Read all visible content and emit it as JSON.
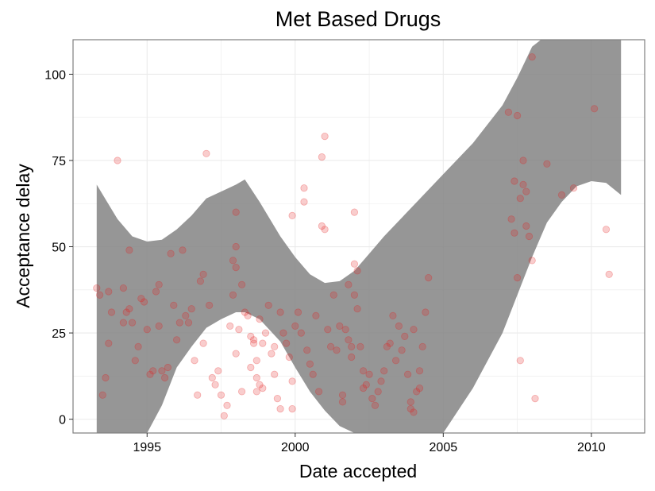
{
  "chart_data": {
    "type": "scatter",
    "title": "Met Based Drugs",
    "xlabel": "Date accepted",
    "ylabel": "Acceptance delay",
    "xlim": [
      1992.5,
      2011.8
    ],
    "ylim": [
      -4,
      110
    ],
    "x_ticks": [
      1995,
      2000,
      2005,
      2010
    ],
    "x_tick_labels": [
      "1995",
      "2000",
      "2005",
      "2010"
    ],
    "y_ticks": [
      0,
      25,
      50,
      75,
      100
    ],
    "y_tick_labels": [
      "0",
      "25",
      "50",
      "75",
      "100"
    ],
    "grid": true,
    "legend": "none",
    "colors": {
      "points": "#e31a1c",
      "band": "#7f7f7f",
      "grid": "#ebebeb",
      "frame": "#7f7f7f"
    },
    "confidence_band": {
      "x": [
        1993.3,
        1994.0,
        1994.5,
        1995.0,
        1995.5,
        1996.0,
        1996.5,
        1997.0,
        1997.5,
        1998.0,
        1998.3,
        1998.8,
        1999.5,
        2000.0,
        2000.5,
        2001.0,
        2001.5,
        2002.0,
        2002.5,
        2003.0,
        2004.0,
        2005.0,
        2006.0,
        2007.0,
        2007.5,
        2008.0,
        2008.3,
        2008.5,
        2009.0,
        2009.5,
        2010.0,
        2010.5,
        2011.0
      ],
      "upper": [
        68,
        58,
        53,
        51.5,
        52,
        55,
        59,
        64,
        66,
        68,
        69.5,
        63,
        53,
        47,
        42,
        39.5,
        40,
        43,
        48,
        53,
        62,
        71,
        80,
        91,
        99,
        108,
        110,
        110,
        110,
        110,
        110,
        110,
        110
      ],
      "lower": [
        -4,
        -4,
        -4,
        -4,
        4,
        15,
        21,
        26.5,
        29,
        31,
        31,
        29,
        22.5,
        15,
        8,
        2.5,
        -2,
        -4,
        -4,
        -4,
        -4,
        -4,
        9,
        25,
        36,
        47,
        53,
        57,
        63,
        67.5,
        69,
        68.5,
        65
      ]
    },
    "points": [
      [
        1993.3,
        38
      ],
      [
        1993.4,
        36
      ],
      [
        1993.5,
        7
      ],
      [
        1993.6,
        12
      ],
      [
        1993.7,
        22
      ],
      [
        1993.8,
        31
      ],
      [
        1993.7,
        37
      ],
      [
        1994.0,
        75
      ],
      [
        1994.2,
        38
      ],
      [
        1994.2,
        28
      ],
      [
        1994.3,
        31
      ],
      [
        1994.4,
        49
      ],
      [
        1994.5,
        28
      ],
      [
        1994.6,
        17
      ],
      [
        1994.7,
        21
      ],
      [
        1994.8,
        35
      ],
      [
        1994.4,
        32
      ],
      [
        1994.9,
        34
      ],
      [
        1995.0,
        26
      ],
      [
        1995.1,
        13
      ],
      [
        1995.2,
        14
      ],
      [
        1995.3,
        37
      ],
      [
        1995.4,
        39
      ],
      [
        1995.4,
        27
      ],
      [
        1995.5,
        14
      ],
      [
        1995.6,
        12
      ],
      [
        1995.7,
        15
      ],
      [
        1995.8,
        48
      ],
      [
        1995.9,
        33
      ],
      [
        1996.0,
        23
      ],
      [
        1996.1,
        28
      ],
      [
        1996.2,
        49
      ],
      [
        1996.3,
        30
      ],
      [
        1996.4,
        28
      ],
      [
        1996.5,
        32
      ],
      [
        1996.6,
        17
      ],
      [
        1996.7,
        7
      ],
      [
        1996.8,
        40
      ],
      [
        1996.9,
        42
      ],
      [
        1996.9,
        22
      ],
      [
        1997.0,
        77
      ],
      [
        1997.1,
        33
      ],
      [
        1997.2,
        12
      ],
      [
        1997.3,
        10
      ],
      [
        1997.4,
        14
      ],
      [
        1997.5,
        7
      ],
      [
        1997.6,
        1
      ],
      [
        1997.7,
        4
      ],
      [
        1997.8,
        27
      ],
      [
        1997.9,
        36
      ],
      [
        1997.9,
        46
      ],
      [
        1998.0,
        19
      ],
      [
        1998.1,
        26
      ],
      [
        1998.2,
        8
      ],
      [
        1998.3,
        31
      ],
      [
        1998.4,
        30
      ],
      [
        1998.5,
        15
      ],
      [
        1998.6,
        23
      ],
      [
        1998.7,
        8
      ],
      [
        1998.7,
        17
      ],
      [
        1998.8,
        29
      ],
      [
        1998.9,
        22
      ],
      [
        1998.0,
        60
      ],
      [
        1998.0,
        50
      ],
      [
        1998.0,
        44
      ],
      [
        1998.2,
        39
      ],
      [
        1998.5,
        24
      ],
      [
        1998.6,
        22
      ],
      [
        1998.7,
        12
      ],
      [
        1998.8,
        10
      ],
      [
        1998.9,
        9
      ],
      [
        1999.0,
        25
      ],
      [
        1999.1,
        33
      ],
      [
        1999.2,
        19
      ],
      [
        1999.3,
        21
      ],
      [
        1999.3,
        13
      ],
      [
        1999.4,
        6
      ],
      [
        1999.5,
        3
      ],
      [
        1999.5,
        31
      ],
      [
        1999.6,
        25
      ],
      [
        1999.7,
        22
      ],
      [
        1999.8,
        18
      ],
      [
        1999.9,
        59
      ],
      [
        1999.9,
        11
      ],
      [
        1999.9,
        3
      ],
      [
        2000.0,
        27
      ],
      [
        2000.1,
        31
      ],
      [
        2000.2,
        25
      ],
      [
        2000.3,
        67
      ],
      [
        2000.3,
        63
      ],
      [
        2000.4,
        20
      ],
      [
        2000.5,
        16
      ],
      [
        2000.6,
        13
      ],
      [
        2000.7,
        30
      ],
      [
        2000.8,
        8
      ],
      [
        2000.9,
        76
      ],
      [
        2000.9,
        56
      ],
      [
        2001.0,
        82
      ],
      [
        2001.0,
        55
      ],
      [
        2001.1,
        26
      ],
      [
        2001.2,
        21
      ],
      [
        2001.3,
        36
      ],
      [
        2001.4,
        20
      ],
      [
        2001.5,
        27
      ],
      [
        2001.6,
        7
      ],
      [
        2001.6,
        5
      ],
      [
        2001.7,
        26
      ],
      [
        2001.8,
        23
      ],
      [
        2001.8,
        39
      ],
      [
        2001.9,
        21
      ],
      [
        2001.9,
        18
      ],
      [
        2002.0,
        60
      ],
      [
        2002.0,
        45
      ],
      [
        2002.0,
        36
      ],
      [
        2002.1,
        32
      ],
      [
        2002.1,
        43
      ],
      [
        2002.2,
        21
      ],
      [
        2002.3,
        14
      ],
      [
        2002.3,
        9
      ],
      [
        2002.4,
        10
      ],
      [
        2002.5,
        13
      ],
      [
        2002.6,
        6
      ],
      [
        2002.7,
        4
      ],
      [
        2002.8,
        8
      ],
      [
        2002.9,
        11
      ],
      [
        2003.0,
        14
      ],
      [
        2003.1,
        21
      ],
      [
        2003.2,
        22
      ],
      [
        2003.3,
        30
      ],
      [
        2003.4,
        17
      ],
      [
        2003.5,
        27
      ],
      [
        2003.6,
        20
      ],
      [
        2003.7,
        24
      ],
      [
        2003.8,
        13
      ],
      [
        2003.9,
        3
      ],
      [
        2003.9,
        5
      ],
      [
        2004.0,
        2
      ],
      [
        2004.1,
        8
      ],
      [
        2004.2,
        9
      ],
      [
        2004.3,
        21
      ],
      [
        2004.4,
        31
      ],
      [
        2004.5,
        41
      ],
      [
        2004.2,
        14
      ],
      [
        2004.0,
        26
      ],
      [
        2007.2,
        89
      ],
      [
        2007.3,
        58
      ],
      [
        2007.4,
        54
      ],
      [
        2007.4,
        69
      ],
      [
        2007.5,
        88
      ],
      [
        2007.6,
        64
      ],
      [
        2007.7,
        75
      ],
      [
        2007.7,
        68
      ],
      [
        2007.8,
        66
      ],
      [
        2007.8,
        56
      ],
      [
        2007.9,
        53
      ],
      [
        2008.0,
        105
      ],
      [
        2008.0,
        46
      ],
      [
        2008.1,
        6
      ],
      [
        2007.5,
        41
      ],
      [
        2007.6,
        17
      ],
      [
        2008.5,
        74
      ],
      [
        2009.0,
        65
      ],
      [
        2009.4,
        67
      ],
      [
        2010.1,
        90
      ],
      [
        2010.5,
        55
      ],
      [
        2010.6,
        42
      ]
    ]
  }
}
